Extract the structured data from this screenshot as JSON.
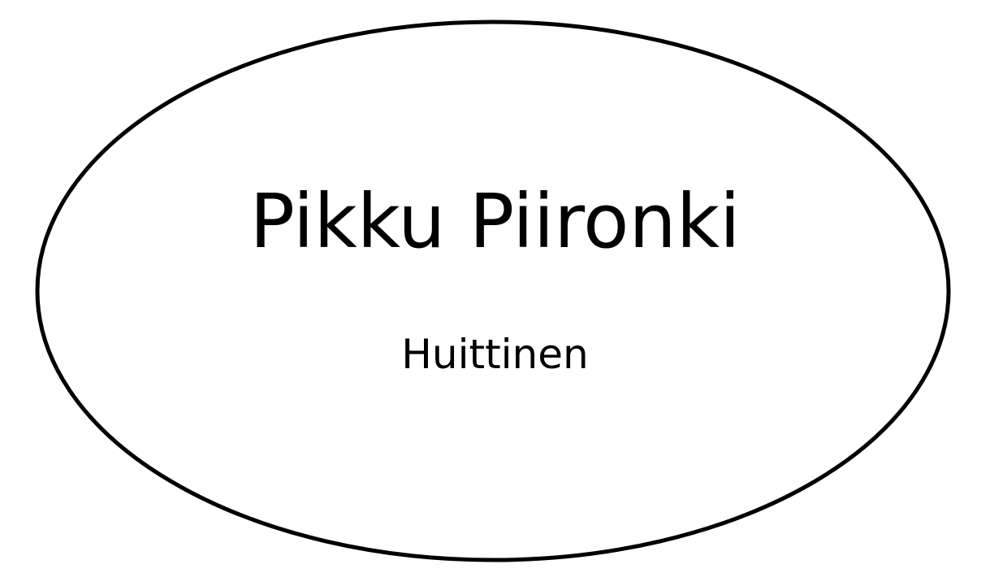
{
  "logo": {
    "name": "Pikku Piironki",
    "location": "Huittinen",
    "stroke_color": "#000000",
    "background_color": "#ffffff"
  }
}
